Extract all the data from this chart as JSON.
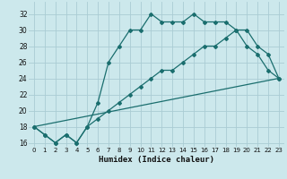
{
  "xlabel": "Humidex (Indice chaleur)",
  "background_color": "#cce8ec",
  "grid_color": "#aaccd4",
  "line_color": "#1a6e6e",
  "ylim": [
    15.5,
    33.5
  ],
  "xlim": [
    -0.5,
    23.5
  ],
  "yticks": [
    16,
    18,
    20,
    22,
    24,
    26,
    28,
    30,
    32
  ],
  "xticks": [
    0,
    1,
    2,
    3,
    4,
    5,
    6,
    7,
    8,
    9,
    10,
    11,
    12,
    13,
    14,
    15,
    16,
    17,
    18,
    19,
    20,
    21,
    22,
    23
  ],
  "line1_x": [
    0,
    1,
    2,
    3,
    4,
    5,
    6,
    7,
    8,
    9,
    10,
    11,
    12,
    13,
    14,
    15,
    16,
    17,
    18,
    19,
    20,
    21,
    22,
    23
  ],
  "line1_y": [
    18,
    17,
    16,
    17,
    16,
    18,
    21,
    26,
    28,
    30,
    30,
    32,
    31,
    31,
    31,
    32,
    31,
    31,
    31,
    30,
    30,
    28,
    27,
    24
  ],
  "line2_x": [
    0,
    1,
    2,
    3,
    4,
    5,
    6,
    7,
    8,
    9,
    10,
    11,
    12,
    13,
    14,
    15,
    16,
    17,
    18,
    19,
    20,
    21,
    22,
    23
  ],
  "line2_y": [
    18,
    17,
    16,
    17,
    16,
    18,
    19,
    20,
    21,
    22,
    23,
    24,
    25,
    25,
    26,
    27,
    28,
    28,
    29,
    30,
    28,
    27,
    25,
    24
  ],
  "line3_x": [
    0,
    23
  ],
  "line3_y": [
    18,
    24
  ],
  "marker_size": 2.0,
  "linewidth": 0.9,
  "tick_fontsize": 5.0,
  "xlabel_fontsize": 6.5
}
